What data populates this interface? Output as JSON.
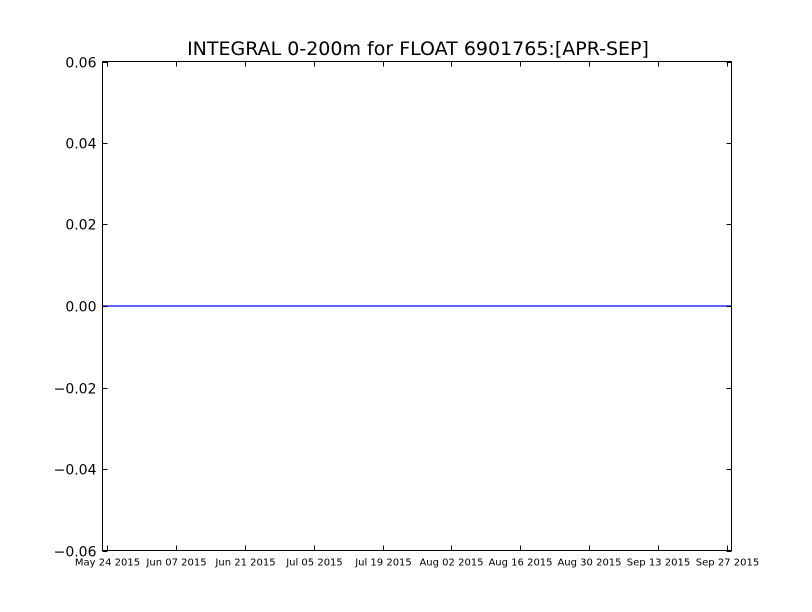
{
  "chart_data": {
    "type": "line",
    "title": "INTEGRAL 0-200m for FLOAT 6901765:[APR-SEP]",
    "xlabel": "",
    "ylabel": "",
    "xlim": [
      "2015-05-23",
      "2015-09-28"
    ],
    "ylim": [
      -0.06,
      0.06
    ],
    "grid": false,
    "legend": "none",
    "x_ticks": [
      {
        "date": "2015-05-24",
        "label": "May 24 2015"
      },
      {
        "date": "2015-06-07",
        "label": "Jun 07 2015"
      },
      {
        "date": "2015-06-21",
        "label": "Jun 21 2015"
      },
      {
        "date": "2015-07-05",
        "label": "Jul 05 2015"
      },
      {
        "date": "2015-07-19",
        "label": "Jul 19 2015"
      },
      {
        "date": "2015-08-02",
        "label": "Aug 02 2015"
      },
      {
        "date": "2015-08-16",
        "label": "Aug 16 2015"
      },
      {
        "date": "2015-08-30",
        "label": "Aug 30 2015"
      },
      {
        "date": "2015-09-13",
        "label": "Sep 13 2015"
      },
      {
        "date": "2015-09-27",
        "label": "Sep 27 2015"
      }
    ],
    "y_ticks": [
      {
        "value": 0.06,
        "label": "0.06"
      },
      {
        "value": 0.04,
        "label": "0.04"
      },
      {
        "value": 0.02,
        "label": "0.02"
      },
      {
        "value": 0.0,
        "label": "0.00"
      },
      {
        "value": -0.02,
        "label": "−0.02"
      },
      {
        "value": -0.04,
        "label": "−0.04"
      },
      {
        "value": -0.06,
        "label": "−0.06"
      }
    ],
    "series": [
      {
        "color": "#0000ff",
        "x": [
          "2015-05-23",
          "2015-09-28"
        ],
        "y": [
          0.0,
          0.0
        ]
      }
    ]
  }
}
